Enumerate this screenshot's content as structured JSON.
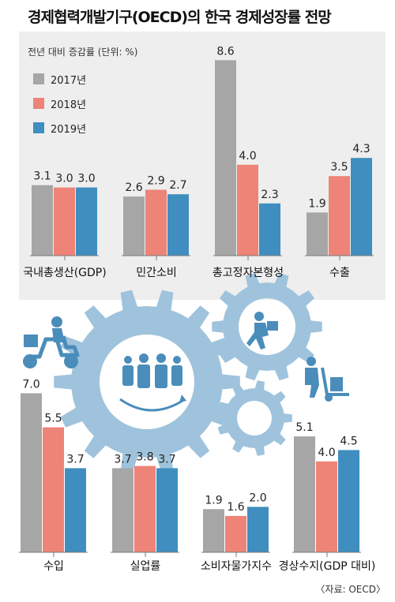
{
  "title": "경제협력개발기구(OECD)의 한국 경제성장률 전망",
  "subtitle": "전년 대비 증감률 (단위: %)",
  "source": "〈자료: OECD〉",
  "colors": {
    "2017년": "#a7a6a6",
    "2018년": "#ee8377",
    "2019년": "#3f8ebf",
    "panel": "#eeeeee",
    "gear": "#9fc3dc",
    "gear_dark": "#4a8dba",
    "axis": "#7b7b7b"
  },
  "chart_data": [
    {
      "type": "bar",
      "unit": "%",
      "series": [
        {
          "name": "2017년",
          "values": [
            3.1,
            2.6,
            8.6,
            1.9
          ]
        },
        {
          "name": "2018년",
          "values": [
            3.0,
            2.9,
            4.0,
            3.5
          ]
        },
        {
          "name": "2019년",
          "values": [
            3.0,
            2.7,
            2.3,
            4.3
          ]
        }
      ],
      "categories": [
        "국내총생산(GDP)",
        "민간소비",
        "총고정자본형성",
        "수출"
      ],
      "legend_position": "top-left",
      "grid": false
    },
    {
      "type": "bar",
      "unit": "%",
      "series": [
        {
          "name": "2017년",
          "values": [
            7.0,
            3.7,
            1.9,
            5.1
          ]
        },
        {
          "name": "2018년",
          "values": [
            5.5,
            3.8,
            1.6,
            4.0
          ]
        },
        {
          "name": "2019년",
          "values": [
            3.7,
            3.7,
            2.0,
            4.5
          ]
        }
      ],
      "categories": [
        "수입",
        "실업률",
        "소비자물가지수",
        "경상수지(GDP 대비)"
      ],
      "grid": false
    }
  ],
  "icons": [
    "delivery-scooter-icon",
    "people-team-icon",
    "running-worker-icon",
    "hand-truck-worker-icon",
    "gear-icon"
  ]
}
